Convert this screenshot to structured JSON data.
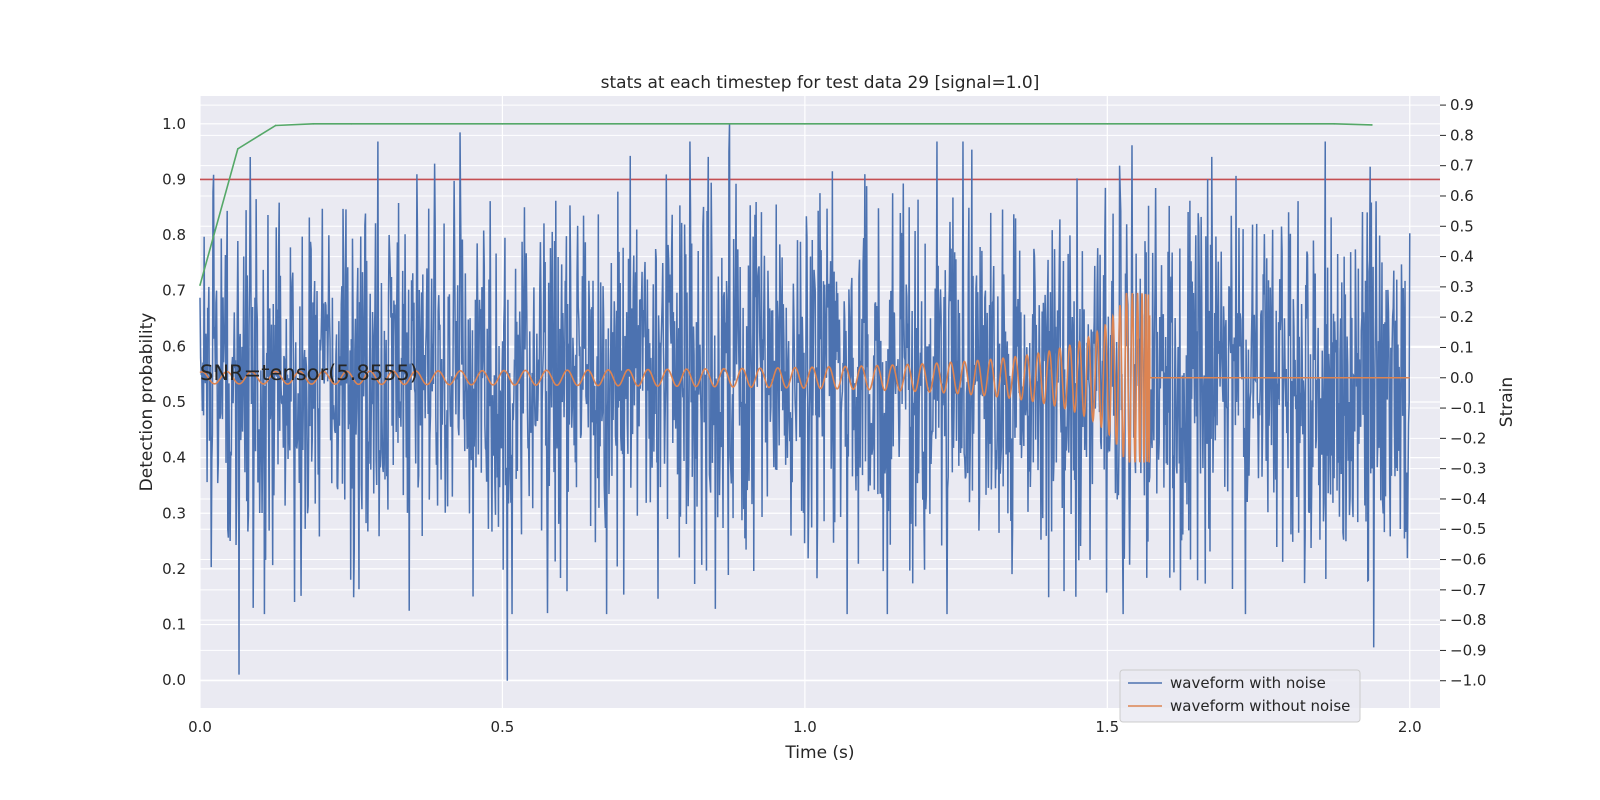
{
  "chart_data": {
    "type": "line",
    "title": "stats at each timestep for test data 29 [signal=1.0]",
    "xlabel": "Time (s)",
    "ylabel_left": "Detection probability",
    "ylabel_right": "Strain",
    "xlim": [
      0.0,
      2.05
    ],
    "ylim_left": [
      -0.05,
      1.05
    ],
    "ylim_right": [
      -1.09,
      0.93
    ],
    "x_ticks": [
      0.0,
      0.5,
      1.0,
      1.5,
      2.0
    ],
    "x_tick_labels": [
      "0.0",
      "0.5",
      "1.0",
      "1.5",
      "2.0"
    ],
    "y_left_ticks": [
      0.0,
      0.1,
      0.2,
      0.3,
      0.4,
      0.5,
      0.6,
      0.7,
      0.8,
      0.9,
      1.0
    ],
    "y_left_tick_labels": [
      "0.0",
      "0.1",
      "0.2",
      "0.3",
      "0.4",
      "0.5",
      "0.6",
      "0.7",
      "0.8",
      "0.9",
      "1.0"
    ],
    "y_right_ticks": [
      -1.0,
      -0.9,
      -0.8,
      -0.7,
      -0.6,
      -0.5,
      -0.4,
      -0.3,
      -0.2,
      -0.1,
      0.0,
      0.1,
      0.2,
      0.3,
      0.4,
      0.5,
      0.6,
      0.7,
      0.8,
      0.9
    ],
    "y_right_tick_labels": [
      "−1.0",
      "−0.9",
      "−0.8",
      "−0.7",
      "−0.6",
      "−0.5",
      "−0.4",
      "−0.3",
      "−0.2",
      "−0.1",
      "0.0",
      "0.1",
      "0.2",
      "0.3",
      "0.4",
      "0.5",
      "0.6",
      "0.7",
      "0.8",
      "0.9"
    ],
    "annotation": "SNR=tensor(5.8555)",
    "threshold": {
      "y": 0.9,
      "color": "#c44e52"
    },
    "detection_probability": {
      "color": "#55a868",
      "x": [
        0.0,
        0.0625,
        0.125,
        0.1875,
        0.25,
        0.5,
        1.0,
        1.5,
        1.875,
        1.9375
      ],
      "y": [
        0.71,
        0.955,
        0.997,
        1.0,
        1.0,
        1.0,
        1.0,
        1.0,
        1.0,
        0.998
      ]
    },
    "series": [
      {
        "name": "waveform with noise",
        "color": "#4c72b0",
        "x_range": [
          0.0,
          2.0
        ],
        "n_points": 2048,
        "peaks": [
          {
            "x": 0.064,
            "y": -0.98
          },
          {
            "x": 0.43,
            "y": 0.81
          },
          {
            "x": 0.508,
            "y": -1.0
          },
          {
            "x": 0.875,
            "y": 0.84
          },
          {
            "x": 1.07,
            "y": -0.78
          },
          {
            "x": 1.94,
            "y": -0.89
          }
        ]
      },
      {
        "name": "waveform without noise",
        "color": "#dd8452",
        "x_range": [
          0.0,
          2.0
        ],
        "merger_time": 1.57
      }
    ],
    "legend": {
      "position": "lower-right",
      "entries": [
        "waveform with noise",
        "waveform without noise"
      ]
    },
    "grid": true
  }
}
